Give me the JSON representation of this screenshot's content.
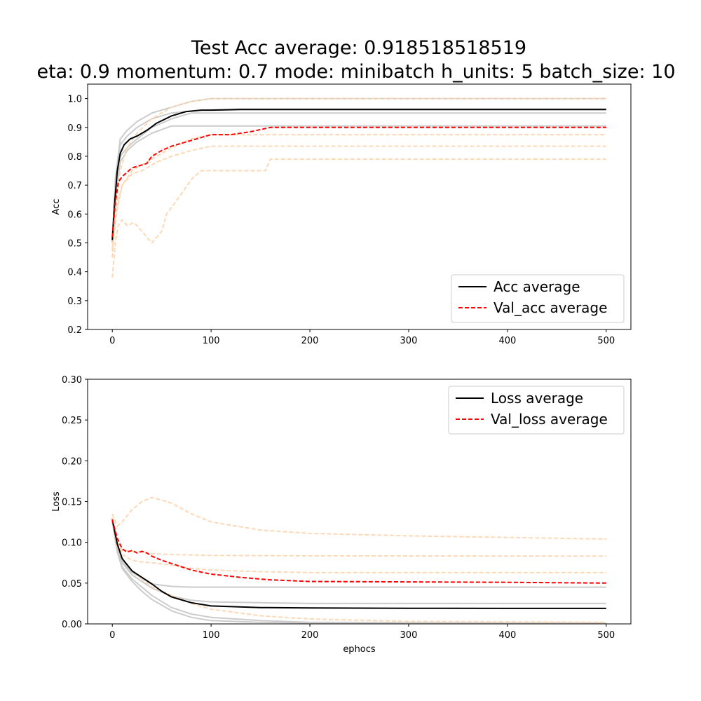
{
  "figure": {
    "title_line1": "Test Acc average: 0.918518518519",
    "title_line2": "eta: 0.9 momentum: 0.7 mode: minibatch h_units: 5 batch_size: 10"
  },
  "colors": {
    "avg_train": "#000000",
    "avg_val": "#ff0000",
    "fold_train": "#cccccc",
    "fold_val": "#fdd8b5"
  },
  "chart_data": [
    {
      "type": "line",
      "title": "",
      "xlabel": "",
      "ylabel": "Acc",
      "xlim": [
        -25,
        525
      ],
      "ylim": [
        0.2,
        1.05
      ],
      "xticks": [
        0,
        100,
        200,
        300,
        400,
        500
      ],
      "yticks": [
        0.2,
        0.3,
        0.4,
        0.5,
        0.6,
        0.7,
        0.8,
        0.9,
        1.0
      ],
      "xtick_labels": [
        "0",
        "100",
        "200",
        "300",
        "400",
        "500"
      ],
      "ytick_labels": [
        "0.2",
        "0.3",
        "0.4",
        "0.5",
        "0.6",
        "0.7",
        "0.8",
        "0.9",
        "1.0"
      ],
      "legend": {
        "placement": "lower-right",
        "entries": [
          "Acc average",
          "Val_acc average"
        ]
      },
      "series": [
        {
          "name": "Acc average",
          "role": "avg_train",
          "style": "solid",
          "x": [
            0,
            2,
            5,
            8,
            12,
            18,
            25,
            35,
            45,
            60,
            75,
            90,
            100,
            130,
            200,
            300,
            400,
            500
          ],
          "y": [
            0.51,
            0.62,
            0.75,
            0.81,
            0.84,
            0.86,
            0.87,
            0.89,
            0.915,
            0.94,
            0.955,
            0.96,
            0.96,
            0.962,
            0.962,
            0.962,
            0.962,
            0.962
          ]
        },
        {
          "name": "Val_acc average",
          "role": "avg_val",
          "style": "dashed",
          "x": [
            0,
            3,
            6,
            10,
            15,
            20,
            25,
            30,
            35,
            40,
            50,
            60,
            70,
            80,
            90,
            100,
            120,
            140,
            160,
            200,
            300,
            400,
            500
          ],
          "y": [
            0.52,
            0.64,
            0.71,
            0.73,
            0.745,
            0.76,
            0.765,
            0.77,
            0.775,
            0.8,
            0.82,
            0.835,
            0.845,
            0.855,
            0.865,
            0.875,
            0.875,
            0.885,
            0.9,
            0.9,
            0.9,
            0.9,
            0.9
          ]
        },
        {
          "role": "fold_train",
          "style": "solid",
          "x": [
            0,
            3,
            8,
            15,
            25,
            40,
            60,
            80,
            100,
            500
          ],
          "y": [
            0.5,
            0.72,
            0.86,
            0.89,
            0.92,
            0.95,
            0.97,
            0.99,
            1.0,
            1.0
          ]
        },
        {
          "role": "fold_train",
          "style": "solid",
          "x": [
            0,
            3,
            8,
            15,
            25,
            40,
            60,
            90,
            130,
            500
          ],
          "y": [
            0.52,
            0.7,
            0.84,
            0.87,
            0.9,
            0.93,
            0.95,
            0.96,
            0.964,
            0.964
          ]
        },
        {
          "role": "fold_train",
          "style": "solid",
          "x": [
            0,
            3,
            8,
            15,
            25,
            40,
            60,
            80,
            500
          ],
          "y": [
            0.5,
            0.68,
            0.8,
            0.83,
            0.86,
            0.9,
            0.93,
            0.95,
            0.95
          ]
        },
        {
          "role": "fold_train",
          "style": "solid",
          "x": [
            0,
            3,
            8,
            15,
            25,
            40,
            60,
            500
          ],
          "y": [
            0.52,
            0.66,
            0.78,
            0.82,
            0.85,
            0.88,
            0.905,
            0.905
          ]
        },
        {
          "role": "fold_val",
          "style": "dashed",
          "x": [
            0,
            3,
            8,
            15,
            25,
            40,
            60,
            80,
            100,
            500
          ],
          "y": [
            0.45,
            0.6,
            0.75,
            0.83,
            0.88,
            0.93,
            0.97,
            0.99,
            1.0,
            1.0
          ]
        },
        {
          "role": "fold_val",
          "style": "dashed",
          "x": [
            0,
            4,
            10,
            20,
            30,
            45,
            60,
            80,
            100,
            500
          ],
          "y": [
            0.47,
            0.62,
            0.7,
            0.75,
            0.77,
            0.8,
            0.83,
            0.86,
            0.875,
            0.875
          ]
        },
        {
          "role": "fold_val",
          "style": "dashed",
          "x": [
            0,
            4,
            10,
            20,
            30,
            45,
            60,
            80,
            100,
            500
          ],
          "y": [
            0.48,
            0.6,
            0.7,
            0.74,
            0.75,
            0.78,
            0.8,
            0.82,
            0.835,
            0.835
          ]
        },
        {
          "role": "fold_val",
          "style": "dashed",
          "x": [
            0,
            3,
            6,
            10,
            15,
            22,
            30,
            40,
            50,
            55,
            70,
            80,
            90,
            100,
            125,
            155,
            160,
            500
          ],
          "y": [
            0.38,
            0.5,
            0.56,
            0.58,
            0.56,
            0.57,
            0.54,
            0.5,
            0.54,
            0.6,
            0.67,
            0.72,
            0.75,
            0.75,
            0.75,
            0.75,
            0.79,
            0.79
          ]
        }
      ]
    },
    {
      "type": "line",
      "title": "",
      "xlabel": "ephocs",
      "ylabel": "Loss",
      "xlim": [
        -25,
        525
      ],
      "ylim": [
        0.0,
        0.3
      ],
      "xticks": [
        0,
        100,
        200,
        300,
        400,
        500
      ],
      "yticks": [
        0.0,
        0.05,
        0.1,
        0.15,
        0.2,
        0.25,
        0.3
      ],
      "xtick_labels": [
        "0",
        "100",
        "200",
        "300",
        "400",
        "500"
      ],
      "ytick_labels": [
        "0.00",
        "0.05",
        "0.10",
        "0.15",
        "0.20",
        "0.25",
        "0.30"
      ],
      "legend": {
        "placement": "upper-right",
        "entries": [
          "Loss average",
          "Val_loss average"
        ]
      },
      "series": [
        {
          "name": "Loss average",
          "role": "avg_train",
          "style": "solid",
          "x": [
            0,
            5,
            10,
            20,
            30,
            40,
            50,
            60,
            80,
            100,
            150,
            200,
            300,
            400,
            500
          ],
          "y": [
            0.128,
            0.098,
            0.08,
            0.065,
            0.057,
            0.049,
            0.04,
            0.033,
            0.026,
            0.022,
            0.02,
            0.0195,
            0.0192,
            0.019,
            0.019
          ]
        },
        {
          "name": "Val_loss average",
          "role": "avg_val",
          "style": "dashed",
          "x": [
            0,
            5,
            10,
            15,
            20,
            25,
            30,
            35,
            40,
            50,
            60,
            80,
            100,
            130,
            160,
            200,
            300,
            400,
            500
          ],
          "y": [
            0.128,
            0.105,
            0.092,
            0.088,
            0.09,
            0.087,
            0.089,
            0.087,
            0.083,
            0.078,
            0.074,
            0.066,
            0.061,
            0.057,
            0.054,
            0.052,
            0.0515,
            0.051,
            0.05
          ]
        },
        {
          "role": "fold_train",
          "style": "solid",
          "x": [
            0,
            5,
            10,
            20,
            30,
            40,
            60,
            80,
            100,
            150,
            200,
            500
          ],
          "y": [
            0.125,
            0.095,
            0.077,
            0.063,
            0.056,
            0.049,
            0.046,
            0.045,
            0.045,
            0.045,
            0.045,
            0.045
          ]
        },
        {
          "role": "fold_train",
          "style": "solid",
          "x": [
            0,
            5,
            10,
            20,
            30,
            40,
            60,
            80,
            100,
            150,
            200,
            500
          ],
          "y": [
            0.126,
            0.094,
            0.075,
            0.06,
            0.052,
            0.044,
            0.034,
            0.029,
            0.027,
            0.026,
            0.025,
            0.025
          ]
        },
        {
          "role": "fold_train",
          "style": "solid",
          "x": [
            0,
            5,
            10,
            20,
            30,
            40,
            60,
            80,
            100,
            150,
            200,
            500
          ],
          "y": [
            0.124,
            0.09,
            0.07,
            0.055,
            0.045,
            0.035,
            0.02,
            0.012,
            0.008,
            0.004,
            0.002,
            0.001
          ]
        },
        {
          "role": "fold_train",
          "style": "solid",
          "x": [
            0,
            5,
            10,
            20,
            30,
            40,
            60,
            80,
            100,
            150,
            200,
            500
          ],
          "y": [
            0.127,
            0.088,
            0.068,
            0.052,
            0.04,
            0.03,
            0.016,
            0.008,
            0.004,
            0.002,
            0.001,
            0.0
          ]
        },
        {
          "role": "fold_val",
          "style": "dashed",
          "x": [
            0,
            5,
            10,
            20,
            30,
            40,
            50,
            60,
            80,
            100,
            150,
            200,
            300,
            400,
            500
          ],
          "y": [
            0.135,
            0.12,
            0.125,
            0.14,
            0.15,
            0.155,
            0.152,
            0.148,
            0.135,
            0.125,
            0.115,
            0.111,
            0.108,
            0.106,
            0.104
          ]
        },
        {
          "role": "fold_val",
          "style": "dashed",
          "x": [
            0,
            5,
            10,
            20,
            30,
            40,
            60,
            100,
            200,
            500
          ],
          "y": [
            0.13,
            0.1,
            0.09,
            0.089,
            0.088,
            0.086,
            0.085,
            0.084,
            0.0835,
            0.083
          ]
        },
        {
          "role": "fold_val",
          "style": "dashed",
          "x": [
            0,
            5,
            10,
            20,
            30,
            40,
            60,
            80,
            100,
            150,
            200,
            500
          ],
          "y": [
            0.13,
            0.1,
            0.085,
            0.078,
            0.076,
            0.075,
            0.072,
            0.068,
            0.066,
            0.064,
            0.063,
            0.063
          ]
        },
        {
          "role": "fold_val",
          "style": "dashed",
          "x": [
            0,
            5,
            10,
            20,
            30,
            40,
            60,
            80,
            100,
            150,
            200,
            300,
            500
          ],
          "y": [
            0.13,
            0.095,
            0.08,
            0.065,
            0.055,
            0.045,
            0.035,
            0.025,
            0.018,
            0.01,
            0.006,
            0.003,
            0.002
          ]
        }
      ]
    }
  ]
}
